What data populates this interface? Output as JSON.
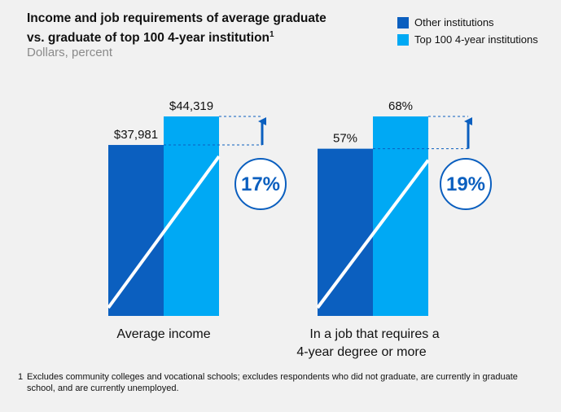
{
  "title": {
    "line1": "Income and job requirements of average graduate",
    "line2": "vs. graduate of top 100 4-year institution",
    "superscript": "1"
  },
  "subtitle": "Dollars, percent",
  "legend": [
    {
      "label": "Other institutions",
      "color": "#0b5fbf"
    },
    {
      "label": "Top 100 4-year institutions",
      "color": "#00a9f4"
    }
  ],
  "chart_data": [
    {
      "type": "bar",
      "title": "",
      "category_label": "Average income",
      "series": [
        {
          "name": "Other institutions",
          "value": 37981,
          "label": "$37,981",
          "color": "#0b5fbf"
        },
        {
          "name": "Top 100 4-year institutions",
          "value": 44319,
          "label": "$44,319",
          "color": "#00a9f4"
        }
      ],
      "difference_label": "17%"
    },
    {
      "type": "bar",
      "title": "",
      "category_label": "In a job that requires a 4-year degree or more",
      "series": [
        {
          "name": "Other institutions",
          "value": 57,
          "label": "57%",
          "color": "#0b5fbf"
        },
        {
          "name": "Top 100 4-year institutions",
          "value": 68,
          "label": "68%",
          "color": "#00a9f4"
        }
      ],
      "difference_label": "19%"
    }
  ],
  "footnote": {
    "marker": "1",
    "text": "Excludes community colleges and vocational schools; excludes respondents who did not graduate, are currently in graduate school, and are currently unemployed."
  },
  "colors": {
    "accent_dark": "#0b5fbf",
    "accent_light": "#00a9f4",
    "background": "#f1f1f1"
  }
}
